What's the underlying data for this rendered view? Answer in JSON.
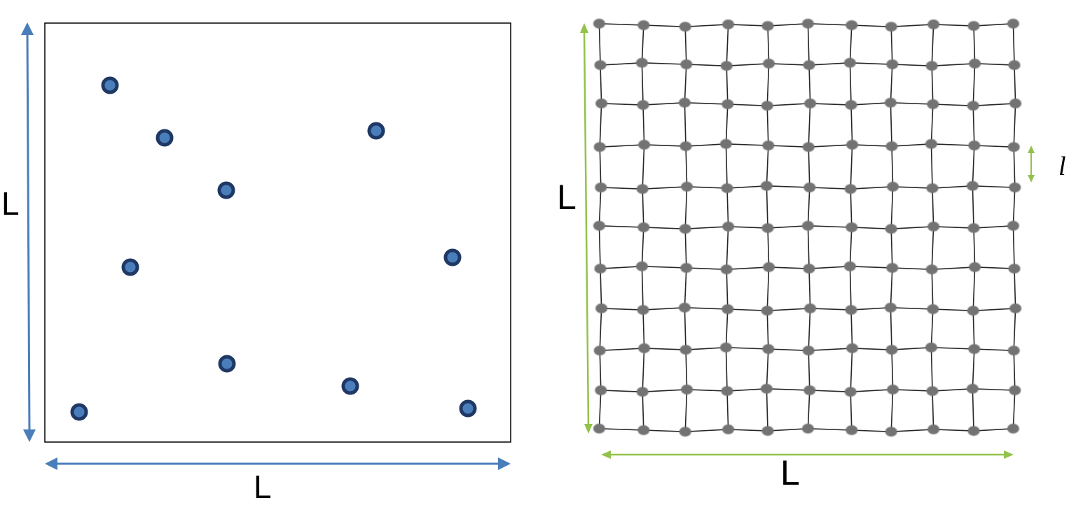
{
  "left_panel": {
    "width_label": "L",
    "height_label": "L",
    "particles_count": 10,
    "colors": {
      "arrow": "#4a7ebb",
      "particle_fill": "#4a7ebb",
      "particle_ring": "#1f3864",
      "box": "#000000"
    }
  },
  "right_panel": {
    "width_label": "L",
    "height_label": "L",
    "spacing_label": "l",
    "lattice": {
      "columns": 11,
      "rows": 11
    },
    "colors": {
      "arrow": "#92c24a",
      "node": "#737373",
      "bond": "#262626"
    }
  }
}
